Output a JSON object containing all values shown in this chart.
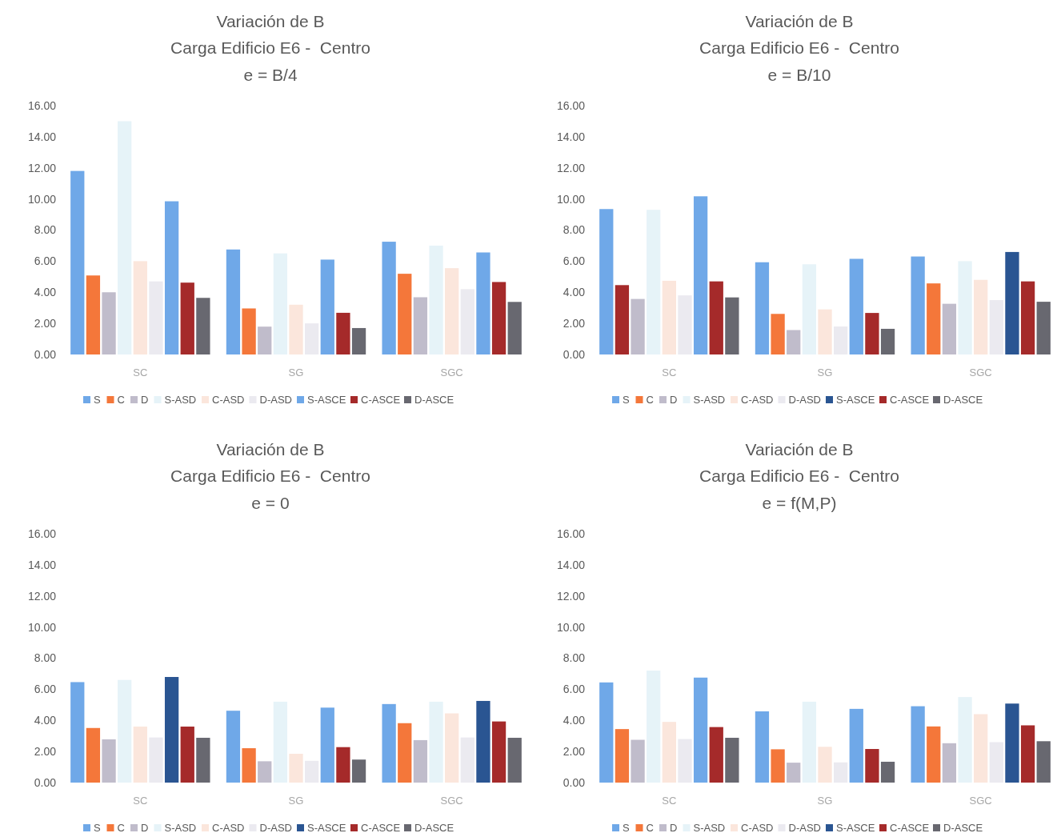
{
  "chart_data": [
    {
      "type": "bar",
      "title": "Variación de B",
      "subtitle": "Carga Edificio E6 -  Centro\ne = B/4",
      "categories": [
        "SC",
        "SG",
        "SGC"
      ],
      "ylim": [
        0,
        16
      ],
      "yticks": [
        {
          "value": 0,
          "label": "0.00"
        },
        {
          "value": 2,
          "label": "2.00"
        },
        {
          "value": 4,
          "label": "4.00"
        },
        {
          "value": 6,
          "label": "6.00"
        },
        {
          "value": 8,
          "label": "8.00"
        },
        {
          "value": 10,
          "label": "10.00"
        },
        {
          "value": 12,
          "label": "12.00"
        },
        {
          "value": 14,
          "label": "14.00"
        },
        {
          "value": 16,
          "label": "16.00"
        }
      ],
      "grid": false,
      "legend": "bottom",
      "series": [
        {
          "name": "S",
          "color": "#6fa8e8",
          "values": [
            11.8,
            6.75,
            7.25
          ]
        },
        {
          "name": "C",
          "color": "#f4773a",
          "values": [
            5.08,
            2.96,
            5.19
          ]
        },
        {
          "name": "D",
          "color": "#c0bccb",
          "values": [
            4.0,
            1.79,
            3.68
          ]
        },
        {
          "name": "S-ASD",
          "color": "#e6f3f8",
          "values": [
            15.0,
            6.5,
            7.0
          ]
        },
        {
          "name": "C-ASD",
          "color": "#fbe6dc",
          "values": [
            6.0,
            3.2,
            5.55
          ]
        },
        {
          "name": "D-ASD",
          "color": "#ebeaf0",
          "values": [
            4.7,
            2.0,
            4.2
          ]
        },
        {
          "name": "S-ASCE",
          "color": "#6fa8e8",
          "values": [
            9.85,
            6.1,
            6.56
          ]
        },
        {
          "name": "C-ASCE",
          "color": "#a52a2a",
          "values": [
            4.62,
            2.68,
            4.66
          ]
        },
        {
          "name": "D-ASCE",
          "color": "#686870",
          "values": [
            3.64,
            1.7,
            3.38
          ]
        }
      ]
    },
    {
      "type": "bar",
      "title": "Variación de B",
      "subtitle": "Carga Edificio E6 -  Centro\ne = B/10",
      "categories": [
        "SC",
        "SG",
        "SGC"
      ],
      "ylim": [
        0,
        16
      ],
      "yticks": [
        {
          "value": 0,
          "label": "0.00"
        },
        {
          "value": 2,
          "label": "2.00"
        },
        {
          "value": 4,
          "label": "4.00"
        },
        {
          "value": 6,
          "label": "6.00"
        },
        {
          "value": 8,
          "label": "8.00"
        },
        {
          "value": 10,
          "label": "10.00"
        },
        {
          "value": 12,
          "label": "12.00"
        },
        {
          "value": 14,
          "label": "14.00"
        },
        {
          "value": 16,
          "label": "16.00"
        }
      ],
      "grid": false,
      "legend": "bottom",
      "series": [
        {
          "name": "S",
          "color": "#6fa8e8",
          "values": [
            9.35,
            5.93,
            6.3
          ]
        },
        {
          "name": "C",
          "color": "#f4773a",
          "colors": [
            "#a52a2a",
            "#f4773a",
            "#f4773a"
          ],
          "values": [
            4.46,
            2.61,
            4.57
          ]
        },
        {
          "name": "D",
          "color": "#c0bccb",
          "values": [
            3.57,
            1.57,
            3.26
          ]
        },
        {
          "name": "S-ASD",
          "color": "#e6f3f8",
          "values": [
            9.3,
            5.8,
            6.0
          ]
        },
        {
          "name": "C-ASD",
          "color": "#fbe6dc",
          "values": [
            4.74,
            2.9,
            4.8
          ]
        },
        {
          "name": "D-ASD",
          "color": "#ebeaf0",
          "values": [
            3.8,
            1.8,
            3.5
          ]
        },
        {
          "name": "S-ASCE",
          "color": "#2a5592",
          "colors": [
            "#6fa8e8",
            "#6fa8e8",
            "#2a5592"
          ],
          "values": [
            10.17,
            6.15,
            6.59
          ]
        },
        {
          "name": "C-ASCE",
          "color": "#a52a2a",
          "values": [
            4.7,
            2.67,
            4.7
          ]
        },
        {
          "name": "D-ASCE",
          "color": "#686870",
          "values": [
            3.67,
            1.65,
            3.39
          ]
        }
      ]
    },
    {
      "type": "bar",
      "title": "Variación de B",
      "subtitle": "Carga Edificio E6 -  Centro\ne = 0",
      "categories": [
        "SC",
        "SG",
        "SGC"
      ],
      "ylim": [
        0,
        16
      ],
      "yticks": [
        {
          "value": 0,
          "label": "0.00"
        },
        {
          "value": 2,
          "label": "2.00"
        },
        {
          "value": 4,
          "label": "4.00"
        },
        {
          "value": 6,
          "label": "6.00"
        },
        {
          "value": 8,
          "label": "8.00"
        },
        {
          "value": 10,
          "label": "10.00"
        },
        {
          "value": 12,
          "label": "12.00"
        },
        {
          "value": 14,
          "label": "14.00"
        },
        {
          "value": 16,
          "label": "16.00"
        }
      ],
      "grid": false,
      "legend": "bottom",
      "series": [
        {
          "name": "S",
          "color": "#6fa8e8",
          "values": [
            6.46,
            4.62,
            5.05
          ]
        },
        {
          "name": "C",
          "color": "#f4773a",
          "values": [
            3.51,
            2.21,
            3.82
          ]
        },
        {
          "name": "D",
          "color": "#c0bccb",
          "values": [
            2.78,
            1.37,
            2.73
          ]
        },
        {
          "name": "S-ASD",
          "color": "#e6f3f8",
          "values": [
            6.6,
            5.2,
            5.2
          ]
        },
        {
          "name": "C-ASD",
          "color": "#fbe6dc",
          "values": [
            3.6,
            1.85,
            4.45
          ]
        },
        {
          "name": "D-ASD",
          "color": "#ebeaf0",
          "values": [
            2.9,
            1.4,
            2.9
          ]
        },
        {
          "name": "S-ASCE",
          "color": "#2a5592",
          "colors": [
            "#2a5592",
            "#6fa8e8",
            "#2a5592"
          ],
          "values": [
            6.79,
            4.82,
            5.25
          ]
        },
        {
          "name": "C-ASCE",
          "color": "#a52a2a",
          "values": [
            3.6,
            2.28,
            3.93
          ]
        },
        {
          "name": "D-ASCE",
          "color": "#686870",
          "values": [
            2.88,
            1.48,
            2.88
          ]
        }
      ]
    },
    {
      "type": "bar",
      "title": "Variación de B",
      "subtitle": "Carga Edificio E6 -  Centro\ne = f(M,P)",
      "categories": [
        "SC",
        "SG",
        "SGC"
      ],
      "ylim": [
        0,
        16
      ],
      "yticks": [
        {
          "value": 0,
          "label": "0.00"
        },
        {
          "value": 2,
          "label": "2.00"
        },
        {
          "value": 4,
          "label": "4.00"
        },
        {
          "value": 6,
          "label": "6.00"
        },
        {
          "value": 8,
          "label": "8.00"
        },
        {
          "value": 10,
          "label": "10.00"
        },
        {
          "value": 12,
          "label": "12.00"
        },
        {
          "value": 14,
          "label": "14.00"
        },
        {
          "value": 16,
          "label": "16.00"
        }
      ],
      "grid": false,
      "legend": "bottom",
      "series": [
        {
          "name": "S",
          "color": "#6fa8e8",
          "values": [
            6.44,
            4.58,
            4.91
          ]
        },
        {
          "name": "C",
          "color": "#f4773a",
          "values": [
            3.44,
            2.14,
            3.61
          ]
        },
        {
          "name": "D",
          "color": "#c0bccb",
          "values": [
            2.75,
            1.28,
            2.53
          ]
        },
        {
          "name": "S-ASD",
          "color": "#e6f3f8",
          "values": [
            7.2,
            5.2,
            5.5
          ]
        },
        {
          "name": "C-ASD",
          "color": "#fbe6dc",
          "values": [
            3.9,
            2.3,
            4.4
          ]
        },
        {
          "name": "D-ASD",
          "color": "#ebeaf0",
          "values": [
            2.8,
            1.3,
            2.6
          ]
        },
        {
          "name": "S-ASCE",
          "color": "#2a5592",
          "colors": [
            "#6fa8e8",
            "#6fa8e8",
            "#2a5592"
          ],
          "values": [
            6.75,
            4.74,
            5.08
          ]
        },
        {
          "name": "C-ASCE",
          "color": "#a52a2a",
          "values": [
            3.57,
            2.16,
            3.68
          ]
        },
        {
          "name": "D-ASCE",
          "color": "#686870",
          "values": [
            2.88,
            1.34,
            2.66
          ]
        }
      ]
    }
  ]
}
